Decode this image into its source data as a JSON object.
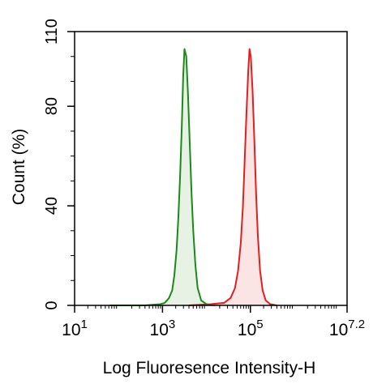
{
  "chart_data": {
    "type": "area",
    "title": "",
    "xlabel": "Log Fluoresence Intensity-H",
    "ylabel": "Count  (%)",
    "x_scale": "log10",
    "xlim": [
      1,
      7.2
    ],
    "ylim": [
      0,
      110
    ],
    "x_ticks": [
      {
        "value": 1,
        "base": "10",
        "exp": "1"
      },
      {
        "value": 3,
        "base": "10",
        "exp": "3"
      },
      {
        "value": 5,
        "base": "10",
        "exp": "5"
      },
      {
        "value": 7.2,
        "base": "10",
        "exp": "7.2"
      }
    ],
    "y_ticks": [
      {
        "value": 0,
        "label": "0"
      },
      {
        "value": 40,
        "label": "40"
      },
      {
        "value": 80,
        "label": "80"
      },
      {
        "value": 110,
        "label": "110"
      }
    ],
    "grid": false,
    "legend": "none",
    "series": [
      {
        "color": "#1a8a1a",
        "fill": "#e8f2e4",
        "x": [
          1.8,
          2.6,
          2.95,
          3.05,
          3.15,
          3.22,
          3.27,
          3.32,
          3.36,
          3.4,
          3.44,
          3.47,
          3.5,
          3.54,
          3.58,
          3.62,
          3.66,
          3.7,
          3.75,
          3.8,
          3.88,
          4.0,
          4.2
        ],
        "y": [
          0,
          0,
          0.5,
          1,
          3,
          6,
          12,
          22,
          35,
          52,
          72,
          92,
          103,
          100,
          85,
          65,
          45,
          30,
          16,
          7,
          2,
          0.5,
          0
        ]
      },
      {
        "color": "#e02020",
        "fill": "#fbe4e4",
        "x": [
          3.6,
          4.1,
          4.4,
          4.55,
          4.65,
          4.72,
          4.78,
          4.83,
          4.87,
          4.91,
          4.95,
          4.98,
          5.01,
          5.05,
          5.09,
          5.13,
          5.17,
          5.22,
          5.28,
          5.35,
          5.45,
          5.6
        ],
        "y": [
          0,
          0.5,
          1,
          3,
          7,
          14,
          25,
          40,
          58,
          77,
          94,
          103,
          100,
          86,
          66,
          45,
          28,
          14,
          6,
          2,
          0.5,
          0
        ]
      }
    ]
  }
}
